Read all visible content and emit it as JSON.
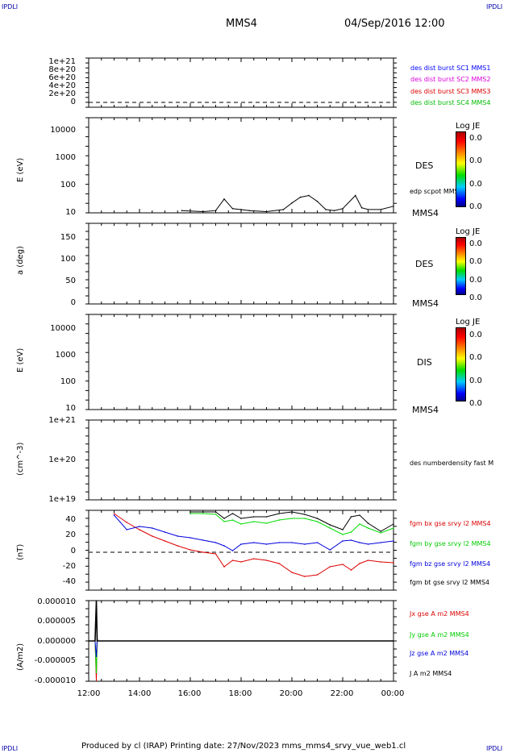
{
  "header": {
    "corner_left_top": "IPDLI",
    "corner_right_top": "IPDLI",
    "corner_left_bottom": "IPDLI",
    "corner_right_bottom": "IPDLI",
    "spacecraft": "MMS4",
    "datetime": "04/Sep/2016 12:00"
  },
  "footer": {
    "text": "Produced by cl (IRAP)   Printing date: 27/Nov/2023   mms_mms4_srvy_vue_web1.cl"
  },
  "x_axis": {
    "ticks": [
      "12:00",
      "14:00",
      "16:00",
      "18:00",
      "20:00",
      "22:00",
      "00:00"
    ]
  },
  "colors": {
    "mms1": "#0000ff",
    "mms2": "#dd00dd",
    "mms3": "#dd0000",
    "mms4": "#00bb00",
    "bx": "#dd0000",
    "by": "#00dd00",
    "bz": "#0000dd",
    "bt": "#000000"
  },
  "panel1": {
    "yticks": [
      "1e+21",
      "8e+20",
      "6e+20",
      "4e+20",
      "2e+20",
      "0"
    ],
    "legend": [
      "des dist burst SC1 MMS1",
      "des dist burst SC2 MMS2",
      "des dist burst SC3 MMS3",
      "des dist burst SC4 MMS4"
    ]
  },
  "panel2": {
    "ylabel": "E (eV)",
    "yticks": [
      "10000",
      "1000",
      "100",
      "10"
    ],
    "species": "DES",
    "legend": "edp scpot MMS4",
    "sc": "MMS4",
    "colorbar_title": "Log JE",
    "colorbar_values": [
      "0.0",
      "0.0",
      "0.0",
      "0.0"
    ]
  },
  "panel3": {
    "ylabel": "a (deg)",
    "yticks": [
      "150",
      "100",
      "50",
      "0"
    ],
    "species": "DES",
    "sc": "MMS4",
    "colorbar_title": "Log JE",
    "colorbar_values": [
      "0.0",
      "0.0",
      "0.0",
      "0.0"
    ]
  },
  "panel4": {
    "ylabel": "E (eV)",
    "yticks": [
      "10000",
      "1000",
      "100",
      "10"
    ],
    "species": "DIS",
    "sc": "MMS4",
    "colorbar_title": "Log JE",
    "colorbar_values": [
      "0.0",
      "0.0",
      "0.0",
      "0.0"
    ]
  },
  "panel5": {
    "ylabel": "(cm^-3)",
    "yticks": [
      "1e+21",
      "1e+20",
      "1e+19"
    ],
    "legend": "des numberdensity fast M"
  },
  "panel6": {
    "ylabel": "(nT)",
    "yticks": [
      "40",
      "20",
      "0",
      "-20",
      "-40"
    ],
    "legend": [
      "fgm bx gse srvy l2 MMS4",
      "fgm by gse srvy l2 MMS4",
      "fgm bz gse srvy l2 MMS4",
      "fgm bt gse srvy l2 MMS4"
    ]
  },
  "panel7": {
    "ylabel": "(A/m2)",
    "yticks": [
      "0.000010",
      "0.000005",
      "0.000000",
      "-0.000005",
      "-0.000010"
    ],
    "legend": [
      "Jx gse A m2 MMS4",
      "Jy gse A m2 MMS4",
      "Jz gse A m2 MMS4",
      "J A m2 MMS4"
    ]
  },
  "chart_data": [
    {
      "type": "line",
      "panel": "edp scpot MMS4",
      "x": [
        "15:40",
        "16:30",
        "17:00",
        "17:20",
        "17:40",
        "18:20",
        "19:00",
        "19:40",
        "20:00",
        "20:20",
        "20:40",
        "21:00",
        "21:20",
        "21:40",
        "22:00",
        "22:30",
        "22:45",
        "23:00",
        "23:30",
        "00:00"
      ],
      "values": [
        12,
        11,
        12,
        30,
        14,
        12,
        11,
        13,
        22,
        35,
        40,
        25,
        13,
        12,
        14,
        40,
        15,
        13,
        13,
        17
      ],
      "ylog": true,
      "ylim": [
        10,
        20000
      ]
    },
    {
      "type": "line",
      "panel": "fgm MMS4",
      "x": [
        "13:00",
        "13:30",
        "14:00",
        "14:30",
        "15:00",
        "15:30",
        "16:00",
        "16:30",
        "17:00",
        "17:20",
        "17:40",
        "18:00",
        "18:30",
        "19:00",
        "19:30",
        "20:00",
        "20:30",
        "21:00",
        "21:30",
        "22:00",
        "22:20",
        "22:40",
        "23:00",
        "23:30",
        "00:00"
      ],
      "series": [
        {
          "name": "fgm bx gse srvy l2 MMS4",
          "values": [
            48,
            37,
            28,
            20,
            14,
            8,
            3,
            0,
            -2,
            -18,
            -10,
            -12,
            -8,
            -10,
            -14,
            -25,
            -30,
            -28,
            -18,
            -15,
            -22,
            -14,
            -10,
            -12,
            -13
          ]
        },
        {
          "name": "fgm by gse srvy l2 MMS4",
          "values": [
            null,
            null,
            null,
            null,
            null,
            null,
            48,
            48,
            47,
            38,
            40,
            35,
            38,
            36,
            40,
            42,
            42,
            38,
            30,
            22,
            25,
            35,
            30,
            24,
            30
          ]
        },
        {
          "name": "fgm bz gse srvy l2 MMS4",
          "values": [
            46,
            28,
            32,
            30,
            25,
            20,
            18,
            15,
            12,
            8,
            2,
            10,
            12,
            10,
            12,
            12,
            10,
            12,
            3,
            14,
            15,
            12,
            10,
            12,
            14
          ]
        },
        {
          "name": "fgm bt gse srvy l2 MMS4",
          "values": [
            null,
            null,
            null,
            null,
            null,
            null,
            50,
            50,
            50,
            42,
            48,
            42,
            44,
            44,
            48,
            50,
            47,
            42,
            34,
            28,
            44,
            46,
            36,
            26,
            35
          ]
        }
      ],
      "ylim": [
        -48,
        52
      ]
    },
    {
      "type": "line",
      "panel": "J MMS4",
      "x": [
        "12:00",
        "12:15",
        "12:18",
        "12:20",
        "12:22",
        "12:30",
        "13:00",
        "18:00",
        "00:00"
      ],
      "series": [
        {
          "name": "Jx gse A m2 MMS4",
          "values": [
            0,
            0,
            -1e-05,
            5e-07,
            0,
            0,
            0,
            0,
            0
          ]
        },
        {
          "name": "Jy gse A m2 MMS4",
          "values": [
            0,
            0,
            -8e-06,
            0,
            0,
            0,
            0,
            0,
            0
          ]
        },
        {
          "name": "Jz gse A m2 MMS4",
          "values": [
            0,
            0,
            -4e-06,
            3e-07,
            0,
            0,
            0,
            0,
            0
          ]
        },
        {
          "name": "J A m2 MMS4",
          "values": [
            0,
            0,
            1e-05,
            0,
            0,
            0,
            0,
            0,
            0
          ]
        }
      ],
      "ylim": [
        -1e-05,
        1e-05
      ]
    }
  ]
}
